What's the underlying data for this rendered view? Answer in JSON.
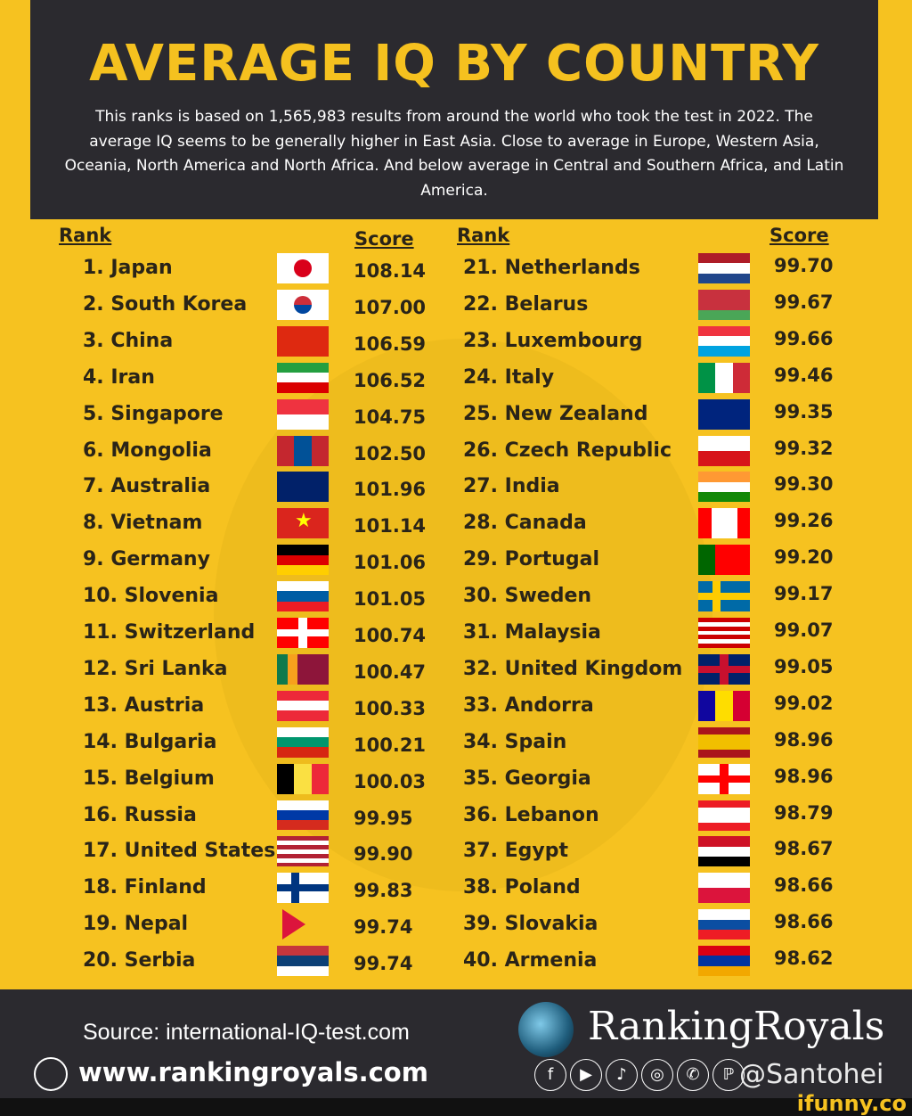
{
  "header": {
    "title": "AVERAGE IQ BY COUNTRY",
    "subtitle": "This ranks is based on 1,565,983 results from around the world who took the test in 2022. The average IQ seems to be generally higher in East Asia. Close to average in Europe, Western Asia, Oceania, North America and North Africa. And below average in Central and Southern Africa, and Latin America."
  },
  "columns": {
    "rank": "Rank",
    "score": "Score"
  },
  "colors": {
    "background": "#f6c220",
    "header": "#2b2a2f",
    "title": "#f5c11f"
  },
  "chart_data": {
    "type": "table",
    "title": "AVERAGE IQ BY COUNTRY",
    "columns": [
      "Rank",
      "Score"
    ],
    "rows": [
      {
        "label": "1. Japan",
        "score": "108.14",
        "flag": {
          "t": "circle",
          "c": [
            "#ffffff",
            "#d9001b"
          ]
        }
      },
      {
        "label": "2. South Korea",
        "score": "107.00",
        "flag": {
          "t": "korea",
          "c": [
            "#ffffff",
            "#cd2e3a",
            "#0047a0"
          ]
        }
      },
      {
        "label": "3. China",
        "score": "106.59",
        "flag": {
          "t": "h",
          "c": [
            "#de2910"
          ]
        }
      },
      {
        "label": "4. Iran",
        "score": "106.52",
        "flag": {
          "t": "h",
          "c": [
            "#239f40",
            "#ffffff",
            "#da0000"
          ]
        }
      },
      {
        "label": "5. Singapore",
        "score": "104.75",
        "flag": {
          "t": "h",
          "c": [
            "#ef3340",
            "#ffffff"
          ]
        }
      },
      {
        "label": "6. Mongolia",
        "score": "102.50",
        "flag": {
          "t": "v",
          "c": [
            "#c4272f",
            "#015197",
            "#c4272f"
          ]
        }
      },
      {
        "label": "7. Australia",
        "score": "101.96",
        "flag": {
          "t": "h",
          "c": [
            "#012169"
          ]
        }
      },
      {
        "label": "8. Vietnam",
        "score": "101.14",
        "flag": {
          "t": "star",
          "c": [
            "#da251d",
            "#ffff00"
          ]
        }
      },
      {
        "label": "9. Germany",
        "score": "101.06",
        "flag": {
          "t": "h",
          "c": [
            "#000000",
            "#dd0000",
            "#ffce00"
          ]
        }
      },
      {
        "label": "10. Slovenia",
        "score": "101.05",
        "flag": {
          "t": "h",
          "c": [
            "#ffffff",
            "#005da4",
            "#ed1c24"
          ]
        }
      },
      {
        "label": "11. Switzerland",
        "score": "100.74",
        "flag": {
          "t": "plus",
          "c": [
            "#ff0000",
            "#ffffff"
          ]
        }
      },
      {
        "label": "12. Sri Lanka",
        "score": "100.47",
        "flag": {
          "t": "v",
          "c": [
            "#0e7a4c",
            "#f7a01d",
            "#8d153a",
            "#8d153a",
            "#8d153a"
          ]
        }
      },
      {
        "label": "13. Austria",
        "score": "100.33",
        "flag": {
          "t": "h",
          "c": [
            "#ed2939",
            "#ffffff",
            "#ed2939"
          ]
        }
      },
      {
        "label": "14. Bulgaria",
        "score": "100.21",
        "flag": {
          "t": "h",
          "c": [
            "#ffffff",
            "#00966e",
            "#d62612"
          ]
        }
      },
      {
        "label": "15. Belgium",
        "score": "100.03",
        "flag": {
          "t": "v",
          "c": [
            "#000000",
            "#fae042",
            "#ed2939"
          ]
        }
      },
      {
        "label": "16. Russia",
        "score": "99.95",
        "flag": {
          "t": "h",
          "c": [
            "#ffffff",
            "#0039a6",
            "#d52b1e"
          ]
        }
      },
      {
        "label": "17. United States",
        "score": "99.90",
        "flag": {
          "t": "h",
          "c": [
            "#b22234",
            "#ffffff",
            "#b22234",
            "#ffffff",
            "#b22234",
            "#ffffff",
            "#b22234"
          ]
        }
      },
      {
        "label": "18. Finland",
        "score": "99.83",
        "flag": {
          "t": "cross",
          "c": [
            "#ffffff",
            "#003580"
          ]
        }
      },
      {
        "label": "19. Nepal",
        "score": "99.74",
        "flag": {
          "t": "nepal",
          "c": [
            "#dc143c",
            "#003893"
          ]
        }
      },
      {
        "label": "20. Serbia",
        "score": "99.74",
        "flag": {
          "t": "h",
          "c": [
            "#c6363c",
            "#0c4076",
            "#ffffff"
          ]
        }
      },
      {
        "label": "21. Netherlands",
        "score": "99.70",
        "flag": {
          "t": "h",
          "c": [
            "#ae1c28",
            "#ffffff",
            "#21468b"
          ]
        }
      },
      {
        "label": "22. Belarus",
        "score": "99.67",
        "flag": {
          "t": "h",
          "c": [
            "#c8313e",
            "#c8313e",
            "#4aa657"
          ]
        }
      },
      {
        "label": "23. Luxembourg",
        "score": "99.66",
        "flag": {
          "t": "h",
          "c": [
            "#ef3340",
            "#ffffff",
            "#00a3e0"
          ]
        }
      },
      {
        "label": "24. Italy",
        "score": "99.46",
        "flag": {
          "t": "v",
          "c": [
            "#009246",
            "#ffffff",
            "#ce2b37"
          ]
        }
      },
      {
        "label": "25. New Zealand",
        "score": "99.35",
        "flag": {
          "t": "h",
          "c": [
            "#00247d"
          ]
        }
      },
      {
        "label": "26. Czech Republic",
        "score": "99.32",
        "flag": {
          "t": "h",
          "c": [
            "#ffffff",
            "#d7141a"
          ]
        }
      },
      {
        "label": "27. India",
        "score": "99.30",
        "flag": {
          "t": "h",
          "c": [
            "#ff9933",
            "#ffffff",
            "#138808"
          ]
        }
      },
      {
        "label": "28. Canada",
        "score": "99.26",
        "flag": {
          "t": "v",
          "c": [
            "#ff0000",
            "#ffffff",
            "#ffffff",
            "#ff0000"
          ]
        }
      },
      {
        "label": "29. Portugal",
        "score": "99.20",
        "flag": {
          "t": "v",
          "c": [
            "#006600",
            "#ff0000",
            "#ff0000"
          ]
        }
      },
      {
        "label": "30. Sweden",
        "score": "99.17",
        "flag": {
          "t": "cross",
          "c": [
            "#006aa7",
            "#fecc00"
          ]
        }
      },
      {
        "label": "31. Malaysia",
        "score": "99.07",
        "flag": {
          "t": "h",
          "c": [
            "#cc0001",
            "#ffffff",
            "#cc0001",
            "#ffffff",
            "#cc0001",
            "#ffffff",
            "#cc0001"
          ]
        }
      },
      {
        "label": "32. United Kingdom",
        "score": "99.05",
        "flag": {
          "t": "plus",
          "c": [
            "#012169",
            "#c8102e"
          ]
        }
      },
      {
        "label": "33. Andorra",
        "score": "99.02",
        "flag": {
          "t": "v",
          "c": [
            "#10069f",
            "#fedd00",
            "#d50032"
          ]
        }
      },
      {
        "label": "34. Spain",
        "score": "98.96",
        "flag": {
          "t": "h",
          "c": [
            "#aa151b",
            "#f1bf00",
            "#f1bf00",
            "#aa151b"
          ]
        }
      },
      {
        "label": "35. Georgia",
        "score": "98.96",
        "flag": {
          "t": "plus",
          "c": [
            "#ffffff",
            "#ff0000"
          ]
        }
      },
      {
        "label": "36. Lebanon",
        "score": "98.79",
        "flag": {
          "t": "h",
          "c": [
            "#ed1c24",
            "#ffffff",
            "#ffffff",
            "#ed1c24"
          ]
        }
      },
      {
        "label": "37. Egypt",
        "score": "98.67",
        "flag": {
          "t": "h",
          "c": [
            "#ce1126",
            "#ffffff",
            "#000000"
          ]
        }
      },
      {
        "label": "38. Poland",
        "score": "98.66",
        "flag": {
          "t": "h",
          "c": [
            "#ffffff",
            "#dc143c"
          ]
        }
      },
      {
        "label": "39. Slovakia",
        "score": "98.66",
        "flag": {
          "t": "h",
          "c": [
            "#ffffff",
            "#0b4ea2",
            "#ee1c25"
          ]
        }
      },
      {
        "label": "40. Armenia",
        "score": "98.62",
        "flag": {
          "t": "h",
          "c": [
            "#d90012",
            "#0033a0",
            "#f2a800"
          ]
        }
      }
    ]
  },
  "footer": {
    "source": "Source: international-IQ-test.com",
    "website": "www.rankingroyals.com",
    "brand": "RankingRoyals",
    "socials": [
      "f",
      "▶",
      "♪",
      "◎",
      "✆",
      "ℙ"
    ],
    "watermark": "@Santohei",
    "ifunny": "ifunny.co"
  }
}
